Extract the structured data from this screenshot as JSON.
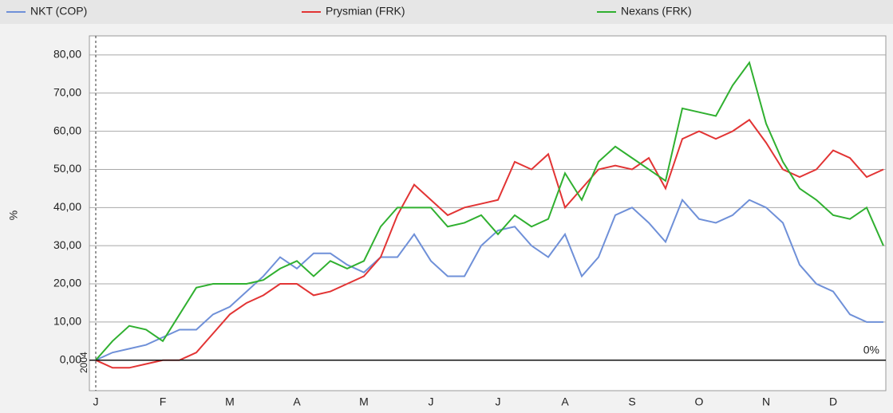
{
  "chart_data": {
    "type": "line",
    "y_label": "%",
    "start_label": "2004",
    "zero_label": "0%",
    "categories": [
      "J",
      null,
      null,
      null,
      "F",
      null,
      null,
      null,
      "M",
      null,
      null,
      null,
      "A",
      null,
      null,
      null,
      "M",
      null,
      null,
      null,
      "J",
      null,
      null,
      null,
      "J",
      null,
      null,
      null,
      "A",
      null,
      null,
      null,
      "S",
      null,
      null,
      null,
      "O",
      null,
      null,
      null,
      "N",
      null,
      null,
      null,
      "D",
      null,
      null,
      null
    ],
    "series": [
      {
        "name": "NKT (COP)",
        "color": "#6f90d8",
        "values": [
          0,
          2,
          3,
          4,
          6,
          8,
          8,
          12,
          14,
          18,
          22,
          27,
          24,
          28,
          28,
          25,
          23,
          27,
          27,
          33,
          26,
          22,
          22,
          30,
          34,
          35,
          30,
          27,
          33,
          22,
          27,
          38,
          40,
          36,
          31,
          42,
          37,
          36,
          38,
          42,
          40,
          36,
          25,
          20,
          18,
          12,
          10,
          10
        ]
      },
      {
        "name": "Prysmian (FRK)",
        "color": "#e23434",
        "values": [
          0,
          -2,
          -2,
          -1,
          0,
          0,
          2,
          7,
          12,
          15,
          17,
          20,
          20,
          17,
          18,
          20,
          22,
          27,
          38,
          46,
          42,
          38,
          40,
          41,
          42,
          52,
          50,
          54,
          40,
          45,
          50,
          51,
          50,
          53,
          45,
          58,
          60,
          58,
          60,
          63,
          57,
          50,
          48,
          50,
          55,
          53,
          48,
          50
        ]
      },
      {
        "name": "Nexans (FRK)",
        "color": "#30b030",
        "values": [
          0,
          5,
          9,
          8,
          5,
          12,
          19,
          20,
          20,
          20,
          21,
          24,
          26,
          22,
          26,
          24,
          26,
          35,
          40,
          40,
          40,
          35,
          36,
          38,
          33,
          38,
          35,
          37,
          49,
          42,
          52,
          56,
          53,
          50,
          47,
          66,
          65,
          64,
          72,
          78,
          62,
          52,
          45,
          42,
          38,
          37,
          40,
          30
        ]
      }
    ],
    "ylim": [
      -8,
      85
    ],
    "yticks": [
      {
        "value": 0,
        "label": "0,00"
      },
      {
        "value": 10,
        "label": "10,00"
      },
      {
        "value": 20,
        "label": "20,00"
      },
      {
        "value": 30,
        "label": "30,00"
      },
      {
        "value": 40,
        "label": "40,00"
      },
      {
        "value": 50,
        "label": "50,00"
      },
      {
        "value": 60,
        "label": "60,00"
      },
      {
        "value": 70,
        "label": "70,00"
      },
      {
        "value": 80,
        "label": "80,00"
      }
    ],
    "grid": true
  }
}
